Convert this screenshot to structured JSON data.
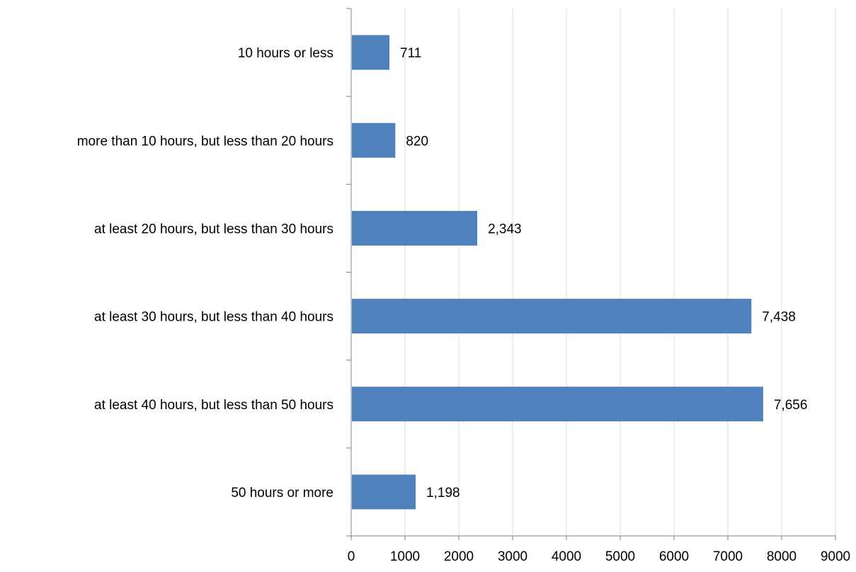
{
  "chart_data": {
    "type": "bar",
    "orientation": "horizontal",
    "title": "",
    "xlabel": "",
    "ylabel": "",
    "categories": [
      "10 hours or less",
      "more than 10 hours, but less than 20 hours",
      "at least 20 hours, but less than 30 hours",
      "at least 30 hours, but less than 40 hours",
      "at least 40 hours, but less than 50 hours",
      "50 hours or more"
    ],
    "values": [
      711,
      820,
      2343,
      7438,
      7656,
      1198
    ],
    "data_labels": [
      "711",
      "820",
      "2,343",
      "7,438",
      "7,656",
      "1,198"
    ],
    "x_ticks": [
      "0",
      "1000",
      "2000",
      "3000",
      "4000",
      "5000",
      "6000",
      "7000",
      "8000",
      "9000"
    ],
    "xlim": [
      0,
      9000
    ],
    "grid": "vertical",
    "legend": "none",
    "colors": {
      "bar": "#4F81BD",
      "grid": "#D9D9D9",
      "axis": "#808080",
      "text": "#000000"
    }
  }
}
